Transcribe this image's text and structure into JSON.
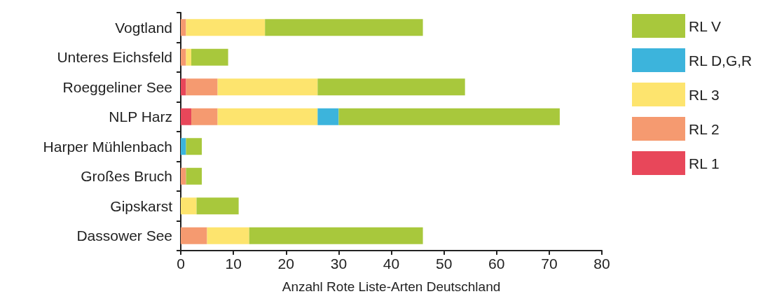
{
  "chart_data": {
    "type": "bar",
    "orientation": "horizontal",
    "stacked": true,
    "xlabel": "Anzahl Rote Liste-Arten Deutschland",
    "categories": [
      "Vogtland",
      "Unteres Eichsfeld",
      "Roeggeliner See",
      "NLP Harz",
      "Harper Mühlenbach",
      "Großes Bruch",
      "Gipskarst",
      "Dassower See"
    ],
    "series": [
      {
        "name": "RL 1",
        "color": "#e8475a",
        "values": [
          0,
          0,
          1,
          2,
          0,
          0,
          0,
          0
        ]
      },
      {
        "name": "RL 2",
        "color": "#f59a70",
        "values": [
          1,
          1,
          6,
          5,
          0,
          1,
          0,
          5
        ]
      },
      {
        "name": "RL 3",
        "color": "#fde46e",
        "values": [
          15,
          1,
          19,
          19,
          0,
          0,
          3,
          8
        ]
      },
      {
        "name": "RL D,G,R",
        "color": "#3cb4dc",
        "values": [
          0,
          0,
          0,
          4,
          1,
          0,
          0,
          0
        ]
      },
      {
        "name": "RL V",
        "color": "#a8c83c",
        "values": [
          30,
          7,
          28,
          42,
          3,
          3,
          8,
          33
        ]
      }
    ],
    "xlim": [
      0,
      80
    ],
    "xticks": [
      0,
      10,
      20,
      30,
      40,
      50,
      60,
      70,
      80
    ],
    "grid": false,
    "legend": "right"
  }
}
